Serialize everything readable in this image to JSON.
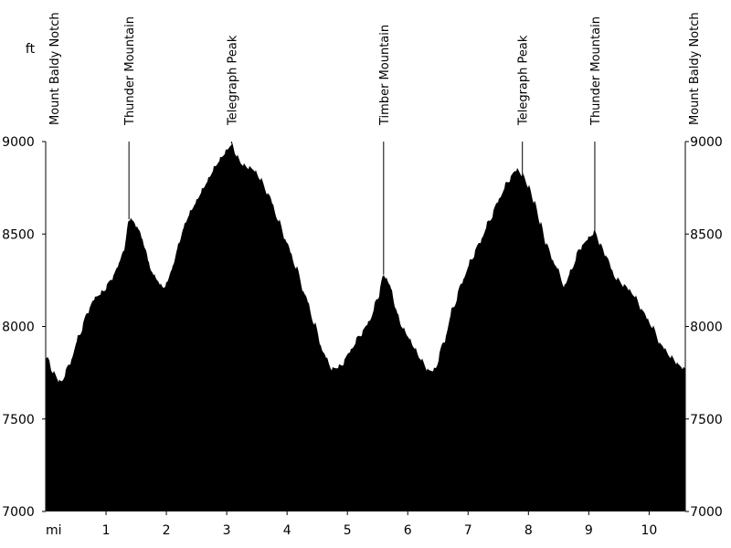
{
  "chart_data": {
    "type": "area",
    "title": "",
    "x_unit": "mi",
    "y_unit": "ft",
    "xlim": [
      0,
      10.6
    ],
    "ylim": [
      7000,
      9000
    ],
    "x_ticks": [
      1,
      2,
      3,
      4,
      5,
      6,
      7,
      8,
      9,
      10
    ],
    "y_ticks": [
      7000,
      7500,
      8000,
      8500,
      9000
    ],
    "fill_color": "#000000",
    "series": [
      {
        "x": [
          0.0,
          0.05,
          0.1,
          0.25,
          0.4,
          0.55,
          0.7,
          0.8,
          0.95,
          1.1,
          1.2,
          1.3,
          1.38,
          1.45,
          1.55,
          1.65,
          1.75,
          1.85,
          1.95,
          2.0,
          2.1,
          2.2,
          2.3,
          2.4,
          2.5,
          2.6,
          2.7,
          2.8,
          2.9,
          3.0,
          3.08,
          3.15,
          3.25,
          3.35,
          3.45,
          3.55,
          3.7,
          3.85,
          4.0,
          4.15,
          4.3,
          4.45,
          4.6,
          4.75,
          4.9,
          5.05,
          5.2,
          5.35,
          5.5,
          5.6,
          5.7,
          5.8,
          5.9,
          6.0,
          6.1,
          6.2,
          6.35,
          6.45,
          6.6,
          6.75,
          6.9,
          7.05,
          7.2,
          7.35,
          7.5,
          7.65,
          7.8,
          7.9,
          8.0,
          8.1,
          8.2,
          8.3,
          8.45,
          8.6,
          8.7,
          8.85,
          9.0,
          9.1,
          9.2,
          9.3,
          9.45,
          9.6,
          9.75,
          9.9,
          10.05,
          10.2,
          10.35,
          10.5,
          10.6
        ],
        "y": [
          7840,
          7820,
          7760,
          7700,
          7800,
          7950,
          8080,
          8150,
          8190,
          8260,
          8330,
          8420,
          8580,
          8570,
          8520,
          8420,
          8300,
          8250,
          8210,
          8230,
          8320,
          8440,
          8550,
          8620,
          8680,
          8740,
          8800,
          8860,
          8910,
          8950,
          8990,
          8930,
          8880,
          8860,
          8850,
          8800,
          8710,
          8580,
          8450,
          8320,
          8170,
          8020,
          7860,
          7770,
          7790,
          7870,
          7950,
          8020,
          8150,
          8280,
          8230,
          8100,
          8000,
          7950,
          7890,
          7830,
          7760,
          7770,
          7920,
          8100,
          8240,
          8360,
          8460,
          8570,
          8680,
          8780,
          8850,
          8820,
          8760,
          8670,
          8560,
          8440,
          8330,
          8220,
          8300,
          8420,
          8480,
          8510,
          8440,
          8370,
          8260,
          8220,
          8170,
          8080,
          8000,
          7900,
          7840,
          7790,
          7770
        ]
      }
    ],
    "annotations": [
      {
        "label": "Mount Baldy Notch",
        "x": 0.0,
        "side": "left-edge"
      },
      {
        "label": "Thunder Mountain",
        "x": 1.38
      },
      {
        "label": "Telegraph Peak",
        "x": 3.08
      },
      {
        "label": "Timber Mountain",
        "x": 5.6
      },
      {
        "label": "Telegraph Peak",
        "x": 7.9
      },
      {
        "label": "Thunder Mountain",
        "x": 9.1
      },
      {
        "label": "Mount Baldy Notch",
        "x": 10.6,
        "side": "right-edge"
      }
    ]
  }
}
